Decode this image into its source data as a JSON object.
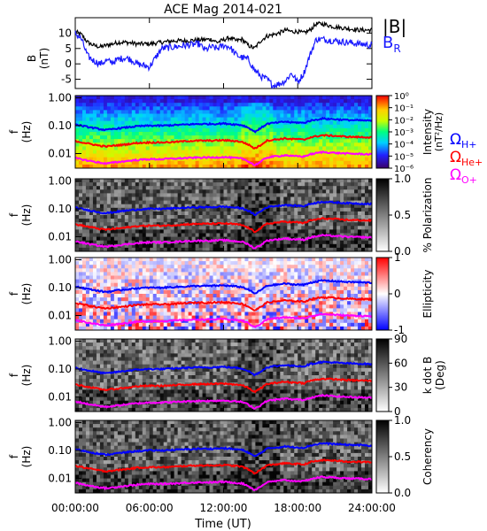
{
  "title": "ACE Mag 2014-021",
  "colors": {
    "B_total": "#000000",
    "B_R": "#1a1aff",
    "omega_H": "#0000ff",
    "omega_He": "#ff0000",
    "omega_O": "#ff00ff",
    "axis": "#000000"
  },
  "chart_data": [
    {
      "type": "line",
      "panel": "magnetic-field",
      "ylabel_line1": "B",
      "ylabel_line2": "(nT)",
      "xlim_hours": [
        0,
        24
      ],
      "ylim": [
        -8,
        15
      ],
      "yticks": [
        -5,
        0,
        5,
        10
      ],
      "ytick_labels": [
        "-5",
        "0",
        "5",
        "10"
      ],
      "legend": {
        "B_total_label": "|B|",
        "B_R_label": "B",
        "B_R_sub": "R",
        "placement": "outside-right"
      },
      "series": [
        {
          "key": "B_total",
          "x": [
            0,
            0.5,
            1,
            1.5,
            2,
            2.5,
            3,
            3.5,
            4,
            4.5,
            5,
            6,
            7,
            8,
            9,
            10,
            11,
            11.5,
            12,
            12.5,
            13,
            13.5,
            14,
            14.5,
            15,
            15.5,
            16,
            16.5,
            17,
            17.5,
            18,
            18.5,
            19,
            19.5,
            20,
            20.5,
            21,
            22,
            23,
            24
          ],
          "y": [
            10.5,
            9.5,
            7.0,
            6.0,
            5.5,
            6.0,
            6.5,
            7.0,
            7.0,
            6.8,
            6.5,
            6.5,
            7.0,
            7.5,
            7.5,
            7.8,
            8.0,
            7.0,
            7.8,
            8.5,
            7.5,
            8.0,
            6.0,
            5.0,
            7.5,
            9.0,
            9.5,
            10.0,
            11.0,
            10.5,
            10.5,
            10.0,
            11.0,
            13.0,
            13.0,
            12.5,
            12.0,
            11.5,
            11.0,
            11.0
          ]
        },
        {
          "key": "B_R",
          "x": [
            0,
            0.5,
            1,
            1.5,
            2,
            2.5,
            3,
            3.5,
            4,
            4.5,
            5,
            5.5,
            6,
            7,
            8,
            9,
            10,
            10.5,
            11,
            11.5,
            12,
            12.5,
            13,
            13.5,
            14,
            14.5,
            15,
            15.5,
            16,
            16.5,
            17,
            17.5,
            18,
            18.5,
            19,
            19.5,
            20,
            21,
            22,
            23,
            24
          ],
          "y": [
            10.0,
            8.0,
            2.5,
            1.0,
            0.0,
            1.0,
            0.5,
            1.5,
            2.0,
            1.5,
            0.0,
            -0.5,
            -1.0,
            5.0,
            5.5,
            6.0,
            6.5,
            4.5,
            5.5,
            5.0,
            6.0,
            5.5,
            3.0,
            2.0,
            1.5,
            -2.0,
            -4.0,
            -5.0,
            -7.0,
            -6.5,
            -5.5,
            -3.0,
            -6.0,
            -3.0,
            3.0,
            8.0,
            8.0,
            7.5,
            7.0,
            6.5,
            6.0
          ]
        }
      ]
    },
    {
      "type": "heatmap",
      "panel": "intensity",
      "ylabel_line1": "f",
      "ylabel_line2": "(Hz)",
      "colorbar": {
        "label": "Intensity",
        "units": "(nT²/Hz)",
        "scale": "log",
        "range": [
          1e-06,
          1
        ],
        "tick_labels": [
          "10⁰",
          "10⁻¹",
          "10⁻²",
          "10⁻³",
          "10⁻⁴",
          "10⁻⁵",
          "10⁻⁶"
        ],
        "palette": "rainbow"
      },
      "gyro_legend": {
        "H_symbol": "Ω",
        "H_sub": "H+",
        "He_symbol": "Ω",
        "He_sub": "He+",
        "O_symbol": "Ω",
        "O_sub": "O+"
      }
    },
    {
      "type": "heatmap",
      "panel": "polarization",
      "ylabel_line1": "f",
      "ylabel_line2": "(Hz)",
      "colorbar": {
        "label": "% Polarization",
        "range": [
          0,
          1
        ],
        "tick_labels": [
          "1.0",
          "0.5",
          "0.0"
        ],
        "palette": "gray"
      }
    },
    {
      "type": "heatmap",
      "panel": "ellipticity",
      "ylabel_line1": "f",
      "ylabel_line2": "(Hz)",
      "colorbar": {
        "label": "Ellipticity",
        "range": [
          -1,
          1
        ],
        "tick_labels": [
          "1",
          "0",
          "-1"
        ],
        "palette": "blue-white-red"
      }
    },
    {
      "type": "heatmap",
      "panel": "kdotb",
      "ylabel_line1": "f",
      "ylabel_line2": "(Hz)",
      "colorbar": {
        "label_line1": "k dot B",
        "label_line2": "(Deg)",
        "range": [
          0,
          90
        ],
        "tick_labels": [
          "90",
          "60",
          "30",
          "0"
        ],
        "palette": "gray"
      }
    },
    {
      "type": "heatmap",
      "panel": "coherency",
      "ylabel_line1": "f",
      "ylabel_line2": "(Hz)",
      "colorbar": {
        "label": "Coherency",
        "range": [
          0,
          1
        ],
        "tick_labels": [
          "1.0",
          "0.5",
          "0.0"
        ],
        "palette": "gray"
      }
    }
  ],
  "spectral_axis": {
    "scale": "log",
    "ylim_hz": [
      0.003,
      1.2
    ],
    "ytick_values": [
      1.0,
      0.1,
      0.01
    ],
    "ytick_labels": [
      "1.00",
      "0.10",
      "0.01"
    ]
  },
  "gyrofrequencies": {
    "x": [
      0,
      1,
      2,
      2.5,
      3,
      4,
      5,
      6,
      7,
      8,
      9,
      10,
      11,
      12,
      13,
      13.5,
      14,
      14.5,
      15,
      15.5,
      16,
      16.5,
      17,
      17.5,
      18,
      18.5,
      19,
      20,
      21,
      22,
      23,
      24
    ],
    "H_plus": [
      0.11,
      0.09,
      0.075,
      0.07,
      0.075,
      0.085,
      0.095,
      0.1,
      0.1,
      0.105,
      0.11,
      0.115,
      0.115,
      0.12,
      0.11,
      0.105,
      0.085,
      0.06,
      0.08,
      0.115,
      0.125,
      0.13,
      0.14,
      0.13,
      0.13,
      0.125,
      0.15,
      0.18,
      0.17,
      0.16,
      0.155,
      0.15
    ],
    "He_plus": [
      0.028,
      0.023,
      0.019,
      0.018,
      0.019,
      0.021,
      0.024,
      0.025,
      0.025,
      0.026,
      0.028,
      0.029,
      0.029,
      0.03,
      0.028,
      0.026,
      0.021,
      0.015,
      0.02,
      0.029,
      0.031,
      0.033,
      0.035,
      0.033,
      0.033,
      0.031,
      0.038,
      0.045,
      0.043,
      0.04,
      0.039,
      0.038
    ],
    "O_plus": [
      0.0069,
      0.0056,
      0.0047,
      0.0044,
      0.0047,
      0.0053,
      0.0059,
      0.0063,
      0.0063,
      0.0066,
      0.0069,
      0.0072,
      0.0072,
      0.0075,
      0.0069,
      0.0066,
      0.0053,
      0.0038,
      0.005,
      0.0072,
      0.0078,
      0.0081,
      0.0088,
      0.0081,
      0.0081,
      0.0078,
      0.0094,
      0.0113,
      0.0106,
      0.01,
      0.0097,
      0.0094
    ]
  },
  "time_axis": {
    "label": "Time (UT)",
    "tick_hours": [
      0,
      6,
      12,
      18,
      24
    ],
    "tick_labels": [
      "00:00:00",
      "06:00:00",
      "12:00:00",
      "18:00:00",
      "24:00:00"
    ]
  }
}
